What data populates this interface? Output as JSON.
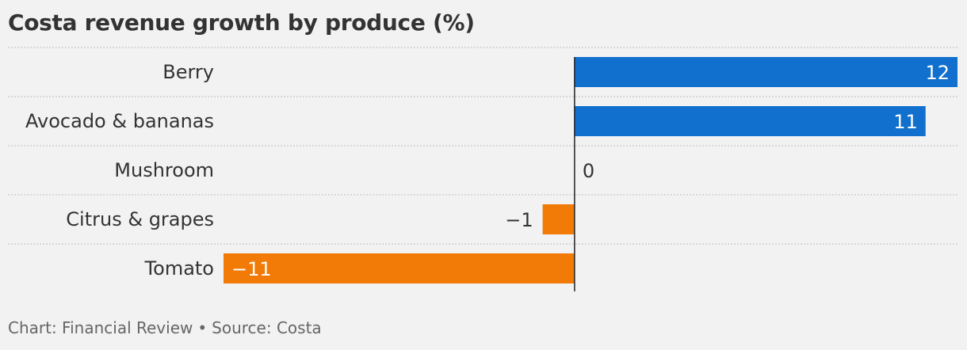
{
  "title": "Costa revenue growth by produce (%)",
  "footer": {
    "chart_by": "Chart: Financial Review",
    "bullet": "•",
    "source": "Source: Costa"
  },
  "colors": {
    "positive": "#1170cd",
    "negative": "#f27a07",
    "background": "#f2f2f2",
    "text": "#333333",
    "grid": "#c8c8c8"
  },
  "chart_data": {
    "type": "bar",
    "orientation": "horizontal",
    "title": "Costa revenue growth by produce (%)",
    "categories": [
      "Berry",
      "Avocado & bananas",
      "Mushroom",
      "Citrus & grapes",
      "Tomato"
    ],
    "values": [
      12,
      11,
      0,
      -1,
      -11
    ],
    "value_labels": [
      "12",
      "11",
      "0",
      "−1",
      "−11"
    ],
    "xlim": [
      -11,
      12
    ],
    "xlabel": "",
    "ylabel": "",
    "grid": false
  }
}
